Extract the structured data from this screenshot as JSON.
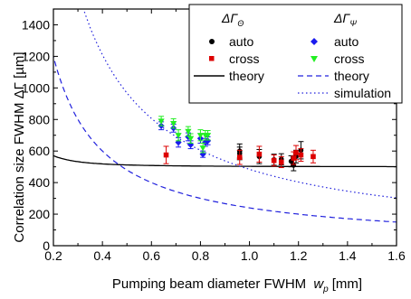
{
  "chart_data": {
    "type": "scatter",
    "xlabel": "Pumping beam diameter FWHM",
    "xlabel_var": "w",
    "xlabel_sub": "p",
    "xlabel_unit": "[mm]",
    "ylabel": "Correlation size FWHM ΔΓ [µm]",
    "xlim": [
      0.2,
      1.6
    ],
    "ylim": [
      0,
      1500
    ],
    "x_ticks": [
      "0.2",
      "0.4",
      "0.6",
      "0.8",
      "1.0",
      "1.2",
      "1.4",
      "1.6"
    ],
    "y_ticks": [
      "0",
      "200",
      "400",
      "600",
      "800",
      "1000",
      "1200",
      "1400"
    ],
    "grid": false,
    "legend_position": "top-right",
    "legend": {
      "theta_head": "ΔΓ",
      "theta_sub": "Θ",
      "psi_head": "ΔΓ",
      "psi_sub": "Ψ",
      "theta_entries": [
        "auto",
        "cross",
        "theory"
      ],
      "psi_entries": [
        "auto",
        "cross",
        "theory",
        "simulation"
      ]
    },
    "colors": {
      "theta_auto": "#000000",
      "theta_cross": "#dd0000",
      "psi_auto": "#1a1aee",
      "psi_cross": "#22ee22",
      "theta_theory": "#000000",
      "psi_theory": "#2222dd",
      "psi_simulation": "#2222dd"
    },
    "series": [
      {
        "name": "auto",
        "group": "theta",
        "marker": "circle",
        "points": [
          [
            0.96,
            600
          ],
          [
            0.96,
            585
          ],
          [
            1.04,
            565
          ],
          [
            1.1,
            545
          ],
          [
            1.13,
            548
          ],
          [
            1.17,
            535
          ],
          [
            1.18,
            510
          ],
          [
            1.19,
            565
          ],
          [
            1.21,
            605
          ]
        ],
        "err": [
          45,
          40,
          45,
          35,
          35,
          35,
          35,
          40,
          55
        ]
      },
      {
        "name": "cross",
        "group": "theta",
        "marker": "square",
        "points": [
          [
            0.66,
            575
          ],
          [
            0.96,
            560
          ],
          [
            1.04,
            580
          ],
          [
            1.1,
            540
          ],
          [
            1.13,
            530
          ],
          [
            1.18,
            555
          ],
          [
            1.19,
            590
          ],
          [
            1.21,
            575
          ],
          [
            1.26,
            565
          ]
        ],
        "err": [
          55,
          45,
          50,
          35,
          35,
          40,
          45,
          40,
          40
        ]
      },
      {
        "name": "auto",
        "group": "psi",
        "marker": "diamond",
        "points": [
          [
            0.64,
            760
          ],
          [
            0.69,
            745
          ],
          [
            0.71,
            655
          ],
          [
            0.75,
            690
          ],
          [
            0.76,
            640
          ],
          [
            0.8,
            680
          ],
          [
            0.81,
            580
          ],
          [
            0.82,
            655
          ],
          [
            0.83,
            665
          ]
        ],
        "err": [
          25,
          25,
          30,
          25,
          25,
          30,
          20,
          25,
          25
        ]
      },
      {
        "name": "cross",
        "group": "psi",
        "marker": "triangle-down",
        "points": [
          [
            0.64,
            790
          ],
          [
            0.69,
            775
          ],
          [
            0.71,
            700
          ],
          [
            0.75,
            725
          ],
          [
            0.76,
            680
          ],
          [
            0.8,
            700
          ],
          [
            0.81,
            620
          ],
          [
            0.82,
            700
          ],
          [
            0.83,
            700
          ]
        ],
        "err": [
          30,
          30,
          35,
          30,
          30,
          35,
          30,
          30,
          30
        ]
      }
    ],
    "curves": {
      "theta_theory": "solid",
      "psi_theory": "dashed",
      "psi_simulation": "dotted"
    }
  }
}
